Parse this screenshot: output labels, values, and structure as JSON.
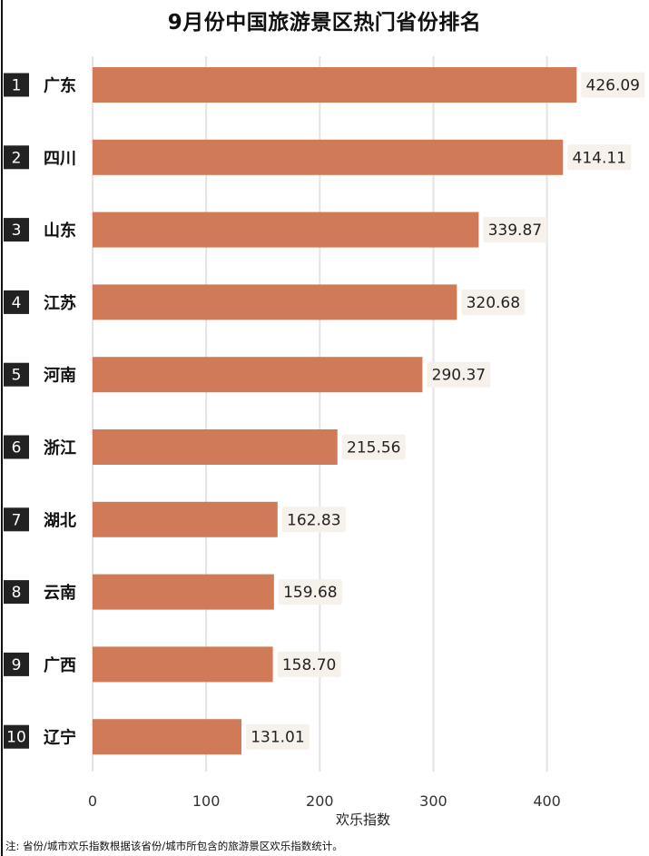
{
  "title": "9月份中国旅游景区热门省份排名",
  "note": "注: 省份/城市欢乐指数根据该省份/城市所包含的旅游景区欢乐指数统计。",
  "colors": {
    "bar": "#d07a58",
    "rank_box": "#222222",
    "label_bg": "#f7f1ec",
    "grid": "#e4e4e4"
  },
  "chart_data": {
    "type": "bar",
    "orientation": "horizontal",
    "title": "9月份中国旅游景区热门省份排名",
    "xlabel": "欢乐指数",
    "ylabel": "",
    "xlim": [
      0,
      440
    ],
    "xticks": [
      0,
      100,
      200,
      300,
      400
    ],
    "grid": true,
    "ranks": [
      "1",
      "2",
      "3",
      "4",
      "5",
      "6",
      "7",
      "8",
      "9",
      "10"
    ],
    "categories": [
      "广东",
      "四川",
      "山东",
      "江苏",
      "河南",
      "浙江",
      "湖北",
      "云南",
      "广西",
      "辽宁"
    ],
    "values": [
      426.09,
      414.11,
      339.87,
      320.68,
      290.37,
      215.56,
      162.83,
      159.68,
      158.7,
      131.01
    ],
    "value_labels": [
      "426.09",
      "414.11",
      "339.87",
      "320.68",
      "290.37",
      "215.56",
      "162.83",
      "159.68",
      "158.70",
      "131.01"
    ]
  }
}
